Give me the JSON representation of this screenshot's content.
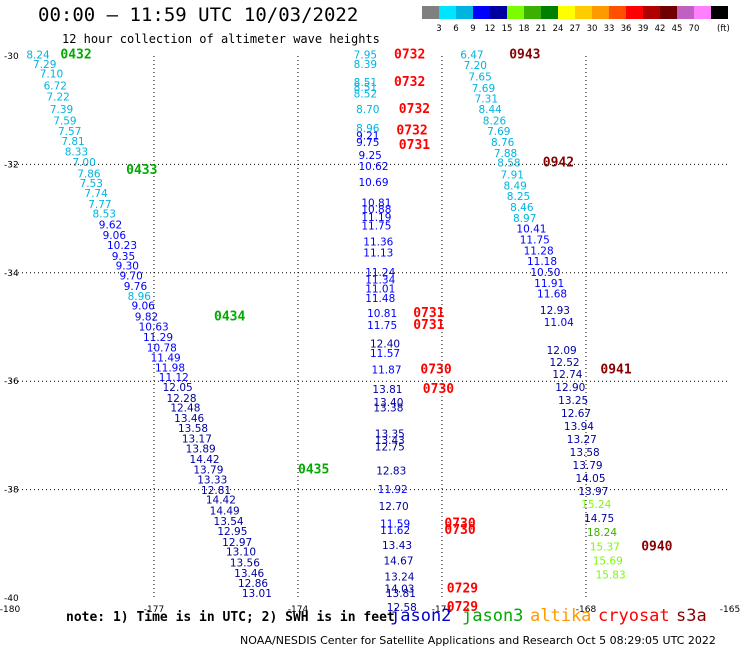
{
  "title": "00:00 – 11:59 UTC 10/03/2022",
  "subtitle": "12 hour collection of altimeter wave heights",
  "note": "note: 1) Time is in UTC; 2) SWH is in feet",
  "credit": "NOAA/NESDIS Center for Satellite Applications and Research   Oct  5 08:29:05 UTC 2022",
  "satellites": [
    {
      "name": "jason2",
      "color": "#0000cc"
    },
    {
      "name": "jason3",
      "color": "#00aa00"
    },
    {
      "name": "altika",
      "color": "#ff9900"
    },
    {
      "name": "cryosat",
      "color": "#ff0000"
    },
    {
      "name": "s3a",
      "color": "#880000"
    }
  ],
  "colorbar": {
    "colors": [
      "#808080",
      "#00e5ff",
      "#00b4e0",
      "#0000ff",
      "#0000a0",
      "#7cfc00",
      "#3cb000",
      "#008000",
      "#ffff00",
      "#ffcc00",
      "#ff9900",
      "#ff5000",
      "#ff0000",
      "#b00000",
      "#700000",
      "#c060c0",
      "#ff80ff",
      "#000000"
    ],
    "labels": [
      "3",
      "6",
      "9",
      "12",
      "15",
      "18",
      "21",
      "24",
      "27",
      "30",
      "33",
      "36",
      "39",
      "42",
      "45",
      "70"
    ],
    "unit": "(ft)"
  },
  "chart_data": {
    "type": "scatter",
    "xlim": [
      -180,
      -165
    ],
    "ylim": [
      -40,
      -30
    ],
    "xticks": [
      "-180",
      "-177",
      "-174",
      "-171",
      "-168",
      "-165"
    ],
    "yticks": [
      "-30",
      "-32",
      "-34",
      "-36",
      "-38",
      "-40"
    ],
    "grid": true,
    "tracks": [
      {
        "satellite": "jason3",
        "points": [
          {
            "x": -179.66,
            "y": -30.05,
            "v": "8.24"
          },
          {
            "x": -179.52,
            "y": -30.22,
            "v": "7.29"
          },
          {
            "x": -179.38,
            "y": -30.4,
            "v": "7.10"
          },
          {
            "x": -179.3,
            "y": -30.62,
            "v": "6.72"
          },
          {
            "x": -179.24,
            "y": -30.82,
            "v": "7.22"
          },
          {
            "x": -179.17,
            "y": -31.05,
            "v": "7.39"
          },
          {
            "x": -179.1,
            "y": -31.26,
            "v": "7.59"
          },
          {
            "x": -179.0,
            "y": -31.46,
            "v": "7.57"
          },
          {
            "x": -178.93,
            "y": -31.64,
            "v": "7.81"
          },
          {
            "x": -178.86,
            "y": -31.84,
            "v": "8.33"
          },
          {
            "x": -178.7,
            "y": -32.03,
            "v": "7.00"
          },
          {
            "x": -178.6,
            "y": -32.24,
            "v": "7.86"
          },
          {
            "x": -178.55,
            "y": -32.42,
            "v": "7.53"
          },
          {
            "x": -178.45,
            "y": -32.6,
            "v": "7.74"
          },
          {
            "x": -178.37,
            "y": -32.8,
            "v": "7.77"
          },
          {
            "x": -178.28,
            "y": -32.98,
            "v": "8.53"
          },
          {
            "x": -178.15,
            "y": -33.18,
            "v": "9.62"
          },
          {
            "x": -178.07,
            "y": -33.38,
            "v": "9.06"
          },
          {
            "x": -177.98,
            "y": -33.56,
            "v": "10.23"
          },
          {
            "x": -177.88,
            "y": -33.76,
            "v": "9.35"
          },
          {
            "x": -177.8,
            "y": -33.94,
            "v": "9.30"
          },
          {
            "x": -177.72,
            "y": -34.12,
            "v": "9.70"
          },
          {
            "x": -177.63,
            "y": -34.32,
            "v": "9.76"
          },
          {
            "x": -177.55,
            "y": -34.5,
            "v": "8.96"
          },
          {
            "x": -177.47,
            "y": -34.68,
            "v": "9.06"
          },
          {
            "x": -177.4,
            "y": -34.88,
            "v": "9.82"
          },
          {
            "x": -177.32,
            "y": -35.06,
            "v": "10.63"
          },
          {
            "x": -177.23,
            "y": -35.26,
            "v": "11.29"
          },
          {
            "x": -177.15,
            "y": -35.45,
            "v": "10.78"
          },
          {
            "x": -177.07,
            "y": -35.64,
            "v": "11.49"
          },
          {
            "x": -176.98,
            "y": -35.82,
            "v": "11.98"
          },
          {
            "x": -176.9,
            "y": -36.0,
            "v": "11.12"
          },
          {
            "x": -176.82,
            "y": -36.18,
            "v": "12.05"
          },
          {
            "x": -176.74,
            "y": -36.38,
            "v": "12.28"
          },
          {
            "x": -176.66,
            "y": -36.56,
            "v": "12.48"
          },
          {
            "x": -176.58,
            "y": -36.75,
            "v": "13.46"
          },
          {
            "x": -176.5,
            "y": -36.94,
            "v": "13.58"
          },
          {
            "x": -176.42,
            "y": -37.13,
            "v": "13.17"
          },
          {
            "x": -176.34,
            "y": -37.32,
            "v": "13.89"
          },
          {
            "x": -176.26,
            "y": -37.51,
            "v": "14.42"
          },
          {
            "x": -176.18,
            "y": -37.7,
            "v": "13.79"
          },
          {
            "x": -176.1,
            "y": -37.89,
            "v": "13.33"
          },
          {
            "x": -176.02,
            "y": -38.08,
            "v": "12.81"
          },
          {
            "x": -175.92,
            "y": -38.26,
            "v": "14.42"
          },
          {
            "x": -175.84,
            "y": -38.46,
            "v": "14.49"
          },
          {
            "x": -175.76,
            "y": -38.65,
            "v": "13.54"
          },
          {
            "x": -175.68,
            "y": -38.84,
            "v": "12.95"
          },
          {
            "x": -175.58,
            "y": -39.04,
            "v": "12.97"
          },
          {
            "x": -175.5,
            "y": -39.22,
            "v": "13.10"
          },
          {
            "x": -175.42,
            "y": -39.42,
            "v": "13.56"
          },
          {
            "x": -175.33,
            "y": -39.61,
            "v": "13.46"
          },
          {
            "x": -175.25,
            "y": -39.8,
            "v": "12.86"
          },
          {
            "x": -175.17,
            "y": -39.98,
            "v": "13.01"
          }
        ],
        "times": [
          {
            "x": -178.95,
            "y": -30.05,
            "t": "0432"
          },
          {
            "x": -177.58,
            "y": -32.18,
            "t": "0433"
          },
          {
            "x": -175.75,
            "y": -34.88,
            "t": "0434"
          },
          {
            "x": -174.0,
            "y": -37.7,
            "t": "0435"
          }
        ]
      },
      {
        "satellite": "cryosat",
        "points": [
          {
            "x": -172.84,
            "y": -30.05,
            "v": "7.95"
          },
          {
            "x": -172.84,
            "y": -30.22,
            "v": "8.39"
          },
          {
            "x": -172.84,
            "y": -30.55,
            "v": "8.51"
          },
          {
            "x": -172.84,
            "y": -30.65,
            "v": "8.51"
          },
          {
            "x": -172.84,
            "y": -30.77,
            "v": "8.52"
          },
          {
            "x": -172.79,
            "y": -31.05,
            "v": "8.70"
          },
          {
            "x": -172.79,
            "y": -31.4,
            "v": "8.96"
          },
          {
            "x": -172.79,
            "y": -31.54,
            "v": "9.21"
          },
          {
            "x": -172.79,
            "y": -31.66,
            "v": "9.75"
          },
          {
            "x": -172.74,
            "y": -31.9,
            "v": "9.25"
          },
          {
            "x": -172.74,
            "y": -32.1,
            "v": "10.62"
          },
          {
            "x": -172.74,
            "y": -32.4,
            "v": "10.69"
          },
          {
            "x": -172.68,
            "y": -32.78,
            "v": "10.81"
          },
          {
            "x": -172.68,
            "y": -32.9,
            "v": "10.88"
          },
          {
            "x": -172.68,
            "y": -33.04,
            "v": "11.19"
          },
          {
            "x": -172.68,
            "y": -33.2,
            "v": "11.75"
          },
          {
            "x": -172.64,
            "y": -33.5,
            "v": "11.36"
          },
          {
            "x": -172.64,
            "y": -33.7,
            "v": "11.13"
          },
          {
            "x": -172.6,
            "y": -34.06,
            "v": "11.24"
          },
          {
            "x": -172.6,
            "y": -34.2,
            "v": "11.34"
          },
          {
            "x": -172.6,
            "y": -34.36,
            "v": "11.01"
          },
          {
            "x": -172.6,
            "y": -34.54,
            "v": "11.48"
          },
          {
            "x": -172.56,
            "y": -34.82,
            "v": "10.81"
          },
          {
            "x": -172.56,
            "y": -35.04,
            "v": "11.75"
          },
          {
            "x": -172.5,
            "y": -35.38,
            "v": "12.40"
          },
          {
            "x": -172.5,
            "y": -35.55,
            "v": "11.57"
          },
          {
            "x": -172.47,
            "y": -35.86,
            "v": "11.87"
          },
          {
            "x": -172.45,
            "y": -36.22,
            "v": "13.81"
          },
          {
            "x": -172.43,
            "y": -36.46,
            "v": "13.40"
          },
          {
            "x": -172.43,
            "y": -36.56,
            "v": "13.38"
          },
          {
            "x": -172.4,
            "y": -37.04,
            "v": "13.35"
          },
          {
            "x": -172.4,
            "y": -37.16,
            "v": "13.43"
          },
          {
            "x": -172.4,
            "y": -37.28,
            "v": "12.75"
          },
          {
            "x": -172.37,
            "y": -37.72,
            "v": "12.83"
          },
          {
            "x": -172.34,
            "y": -38.06,
            "v": "11.92"
          },
          {
            "x": -172.32,
            "y": -38.38,
            "v": "12.70"
          },
          {
            "x": -172.29,
            "y": -38.7,
            "v": "11.59"
          },
          {
            "x": -172.29,
            "y": -38.82,
            "v": "11.62"
          },
          {
            "x": -172.25,
            "y": -39.1,
            "v": "13.43"
          },
          {
            "x": -172.22,
            "y": -39.38,
            "v": "14.67"
          },
          {
            "x": -172.2,
            "y": -39.68,
            "v": "13.24"
          },
          {
            "x": -172.2,
            "y": -39.9,
            "v": "14.03"
          },
          {
            "x": -172.17,
            "y": -39.98,
            "v": "13.81"
          },
          {
            "x": -172.15,
            "y": -40.24,
            "v": "12.58"
          }
        ],
        "times": [
          {
            "x": -172.0,
            "y": -30.05,
            "t": "0732"
          },
          {
            "x": -172.0,
            "y": -30.55,
            "t": "0732"
          },
          {
            "x": -171.9,
            "y": -31.05,
            "t": "0732"
          },
          {
            "x": -171.95,
            "y": -31.45,
            "t": "0732"
          },
          {
            "x": -171.9,
            "y": -31.72,
            "t": "0731"
          },
          {
            "x": -171.6,
            "y": -34.82,
            "t": "0731"
          },
          {
            "x": -171.6,
            "y": -35.04,
            "t": "0731"
          },
          {
            "x": -171.45,
            "y": -35.86,
            "t": "0730"
          },
          {
            "x": -171.4,
            "y": -36.22,
            "t": "0730"
          },
          {
            "x": -170.95,
            "y": -38.7,
            "t": "0730"
          },
          {
            "x": -170.95,
            "y": -38.82,
            "t": "0730"
          },
          {
            "x": -170.9,
            "y": -39.9,
            "t": "0729"
          },
          {
            "x": -170.9,
            "y": -40.24,
            "t": "0729"
          }
        ]
      },
      {
        "satellite": "s3a",
        "points": [
          {
            "x": -170.62,
            "y": -30.05,
            "v": "6.47"
          },
          {
            "x": -170.55,
            "y": -30.24,
            "v": "7.20"
          },
          {
            "x": -170.45,
            "y": -30.45,
            "v": "7.65"
          },
          {
            "x": -170.38,
            "y": -30.66,
            "v": "7.69"
          },
          {
            "x": -170.32,
            "y": -30.86,
            "v": "7.31"
          },
          {
            "x": -170.24,
            "y": -31.05,
            "v": "8.44"
          },
          {
            "x": -170.15,
            "y": -31.26,
            "v": "8.26"
          },
          {
            "x": -170.06,
            "y": -31.46,
            "v": "7.69"
          },
          {
            "x": -169.98,
            "y": -31.66,
            "v": "8.76"
          },
          {
            "x": -169.92,
            "y": -31.86,
            "v": "7.88"
          },
          {
            "x": -169.85,
            "y": -32.04,
            "v": "8.58"
          },
          {
            "x": -169.78,
            "y": -32.26,
            "v": "7.91"
          },
          {
            "x": -169.72,
            "y": -32.46,
            "v": "8.49"
          },
          {
            "x": -169.65,
            "y": -32.66,
            "v": "8.25"
          },
          {
            "x": -169.58,
            "y": -32.86,
            "v": "8.46"
          },
          {
            "x": -169.52,
            "y": -33.06,
            "v": "8.97"
          },
          {
            "x": -169.45,
            "y": -33.26,
            "v": "10.41"
          },
          {
            "x": -169.38,
            "y": -33.46,
            "v": "11.75"
          },
          {
            "x": -169.3,
            "y": -33.66,
            "v": "11.28"
          },
          {
            "x": -169.23,
            "y": -33.86,
            "v": "11.18"
          },
          {
            "x": -169.16,
            "y": -34.06,
            "v": "10.50"
          },
          {
            "x": -169.08,
            "y": -34.26,
            "v": "11.91"
          },
          {
            "x": -169.02,
            "y": -34.46,
            "v": "11.68"
          },
          {
            "x": -168.96,
            "y": -34.76,
            "v": "12.93"
          },
          {
            "x": -168.88,
            "y": -34.98,
            "v": "11.04"
          },
          {
            "x": -168.82,
            "y": -35.5,
            "v": "12.09"
          },
          {
            "x": -168.76,
            "y": -35.72,
            "v": "12.52"
          },
          {
            "x": -168.7,
            "y": -35.94,
            "v": "12.74"
          },
          {
            "x": -168.64,
            "y": -36.18,
            "v": "12.90"
          },
          {
            "x": -168.58,
            "y": -36.42,
            "v": "13.25"
          },
          {
            "x": -168.52,
            "y": -36.66,
            "v": "12.67"
          },
          {
            "x": -168.46,
            "y": -36.9,
            "v": "13.94"
          },
          {
            "x": -168.4,
            "y": -37.14,
            "v": "13.27"
          },
          {
            "x": -168.34,
            "y": -37.38,
            "v": "13.58"
          },
          {
            "x": -168.28,
            "y": -37.62,
            "v": "13.79"
          },
          {
            "x": -168.22,
            "y": -37.86,
            "v": "14.05"
          },
          {
            "x": -168.16,
            "y": -38.1,
            "v": "13.97"
          },
          {
            "x": -168.1,
            "y": -38.34,
            "v": "15.24"
          },
          {
            "x": -168.04,
            "y": -38.6,
            "v": "14.75"
          },
          {
            "x": -167.98,
            "y": -38.86,
            "v": "18.24"
          },
          {
            "x": -167.92,
            "y": -39.12,
            "v": "15.37"
          },
          {
            "x": -167.86,
            "y": -39.38,
            "v": "15.69"
          },
          {
            "x": -167.8,
            "y": -39.64,
            "v": "15.83"
          }
        ],
        "times": [
          {
            "x": -169.6,
            "y": -30.05,
            "t": "0943"
          },
          {
            "x": -168.9,
            "y": -32.04,
            "t": "0942"
          },
          {
            "x": -167.7,
            "y": -35.86,
            "t": "0941"
          },
          {
            "x": -166.85,
            "y": -39.12,
            "t": "0940"
          }
        ]
      }
    ]
  }
}
